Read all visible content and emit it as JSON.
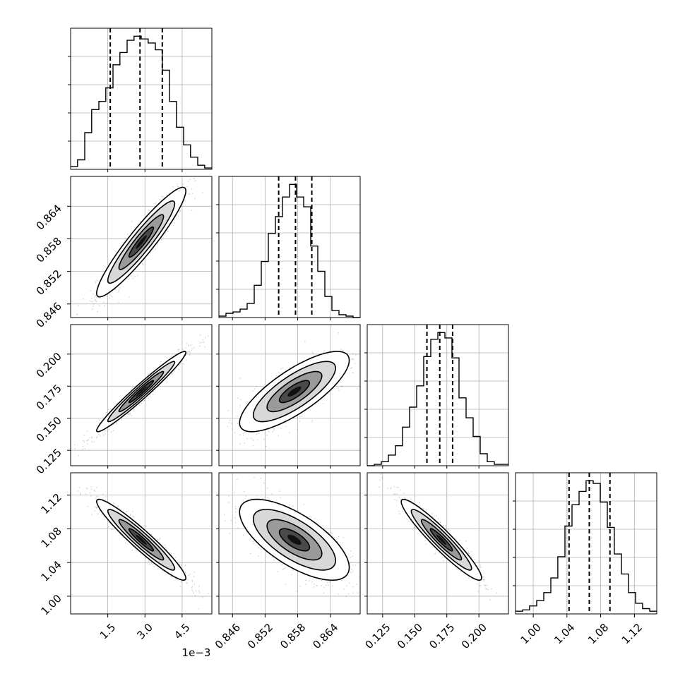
{
  "chart_data": {
    "type": "corner",
    "grid": true,
    "axis_offset_label": "1e−3",
    "params": [
      {
        "ticks": [
          1.5,
          3.0,
          4.5
        ],
        "tick_labels": [
          "1.5",
          "3.0",
          "4.5"
        ],
        "range": [
          0.0,
          5.7
        ],
        "quantiles": [
          1.6,
          2.8,
          3.7
        ],
        "hist_edges": [
          0.0,
          0.28,
          0.57,
          0.85,
          1.14,
          1.42,
          1.71,
          1.99,
          2.28,
          2.56,
          2.85,
          3.13,
          3.42,
          3.7,
          3.99,
          4.27,
          4.56,
          4.84,
          5.13,
          5.41,
          5.7
        ],
        "hist_counts": [
          2,
          7,
          27,
          44,
          50,
          60,
          77,
          86,
          95,
          98,
          96,
          93,
          88,
          73,
          50,
          31,
          18,
          9,
          3,
          1
        ]
      },
      {
        "ticks": [
          0.846,
          0.852,
          0.858,
          0.864
        ],
        "tick_labels": [
          "0.846",
          "0.852",
          "0.858",
          "0.864"
        ],
        "range": [
          0.8435,
          0.8695
        ],
        "quantiles": [
          0.8545,
          0.8576,
          0.8606
        ],
        "hist_edges": [
          0.8435,
          0.8448,
          0.8461,
          0.8474,
          0.8487,
          0.85,
          0.8513,
          0.8526,
          0.8539,
          0.8552,
          0.8565,
          0.8578,
          0.8591,
          0.8604,
          0.8617,
          0.863,
          0.8643,
          0.8656,
          0.8669,
          0.8682,
          0.8695
        ],
        "hist_counts": [
          1,
          3,
          4,
          6,
          10,
          23,
          40,
          60,
          72,
          86,
          95,
          86,
          79,
          51,
          33,
          15,
          5,
          2,
          1,
          0
        ]
      },
      {
        "ticks": [
          0.125,
          0.15,
          0.175,
          0.2
        ],
        "tick_labels": [
          "0.125",
          "0.150",
          "0.175",
          "0.200"
        ],
        "range": [
          0.113,
          0.223
        ],
        "quantiles": [
          0.1595,
          0.1695,
          0.1795
        ],
        "hist_edges": [
          0.113,
          0.1185,
          0.124,
          0.1295,
          0.135,
          0.1405,
          0.146,
          0.1515,
          0.157,
          0.1625,
          0.168,
          0.1735,
          0.179,
          0.1845,
          0.19,
          0.1955,
          0.201,
          0.2065,
          0.212,
          0.2175,
          0.223
        ],
        "hist_counts": [
          0,
          1,
          3,
          8,
          15,
          29,
          44,
          60,
          82,
          95,
          100,
          96,
          81,
          51,
          36,
          22,
          9,
          3,
          1,
          1
        ]
      },
      {
        "ticks": [
          1.0,
          1.04,
          1.08,
          1.12
        ],
        "tick_labels": [
          "1.00",
          "1.04",
          "1.08",
          "1.12"
        ],
        "range": [
          0.979,
          1.1465
        ],
        "quantiles": [
          1.0425,
          1.0665,
          1.091
        ],
        "hist_edges": [
          0.979,
          0.9874,
          0.9957,
          1.0041,
          1.0125,
          1.0209,
          1.0292,
          1.0376,
          1.046,
          1.0544,
          1.0627,
          1.0711,
          1.0795,
          1.0879,
          1.0962,
          1.1046,
          1.113,
          1.1214,
          1.1297,
          1.1381,
          1.1465
        ],
        "hist_counts": [
          2,
          3,
          6,
          10,
          16,
          27,
          43,
          66,
          82,
          92,
          100,
          98,
          84,
          65,
          45,
          30,
          16,
          8,
          4,
          2
        ]
      }
    ],
    "pairs": [
      {
        "row": 1,
        "col": 0,
        "center": [
          2.85,
          0.8574
        ],
        "cov": [
          [
            0.81,
            0.00424
          ],
          [
            0.00424,
            2.55e-05
          ]
        ]
      },
      {
        "row": 2,
        "col": 0,
        "center": [
          2.85,
          0.1708
        ],
        "cov": [
          [
            0.81,
            0.0137
          ],
          [
            0.0137,
            0.000245
          ]
        ]
      },
      {
        "row": 2,
        "col": 1,
        "center": [
          0.8574,
          0.1708
        ],
        "cov": [
          [
            2.55e-05,
            6.16e-05
          ],
          [
            6.16e-05,
            0.000245
          ]
        ]
      },
      {
        "row": 3,
        "col": 0,
        "center": [
          2.85,
          1.067
        ],
        "cov": [
          [
            0.81,
            -0.0205
          ],
          [
            -0.0205,
            0.000576
          ]
        ]
      },
      {
        "row": 3,
        "col": 1,
        "center": [
          0.8574,
          1.067
        ],
        "cov": [
          [
            2.55e-05,
            -8.31e-05
          ],
          [
            -8.31e-05,
            0.000576
          ]
        ]
      },
      {
        "row": 3,
        "col": 2,
        "center": [
          0.1708,
          1.067
        ],
        "cov": [
          [
            0.000245,
            -0.000354
          ],
          [
            -0.000354,
            0.000576
          ]
        ]
      }
    ]
  }
}
